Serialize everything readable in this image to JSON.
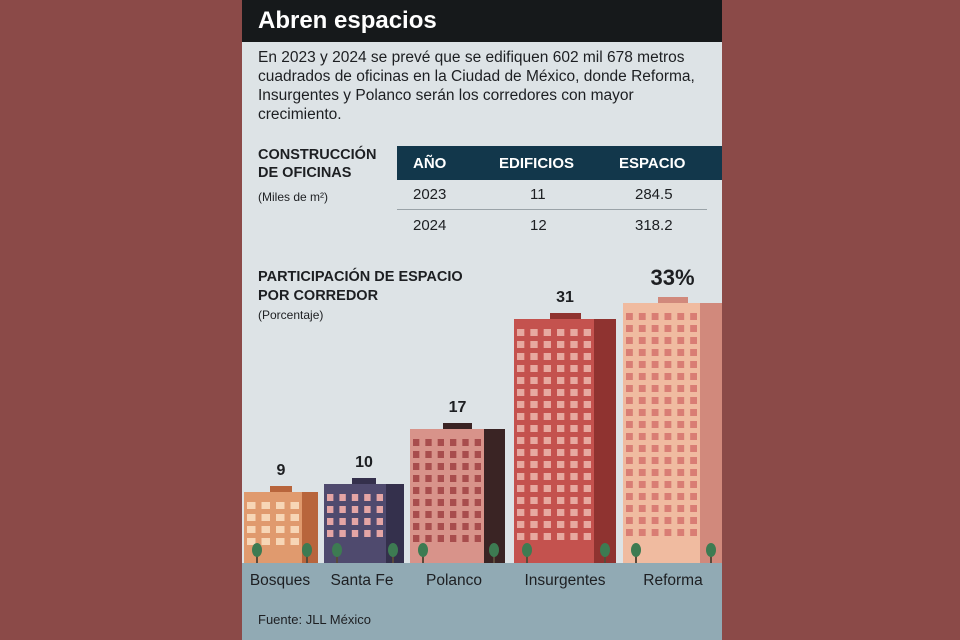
{
  "title": "Abren espacios",
  "intro": "En 2023 y 2024 se prevé que se edifiquen 602 mil 678 metros cuadrados de oficinas en la Ciudad de México, donde Reforma, Insurgentes y Polanco serán los corredores con mayor crecimiento.",
  "table_section": {
    "title_line1": "CONSTRUCCIÓN",
    "title_line2": "DE OFICINAS",
    "unit": "(Miles de m²)"
  },
  "chart_section": {
    "title_line1": "PARTICIPACIÓN DE ESPACIO",
    "title_line2": "POR CORREDOR",
    "unit": "(Porcentaje)"
  },
  "source": "Fuente: JLL México",
  "colors": {
    "bosques": "#e09a6e",
    "santa_fe": "#4f4a6e",
    "polanco": "#d8938a",
    "insurgentes": "#c4524e",
    "reforma": "#f0bba0",
    "ground": "#91aab4",
    "header": "#12374b"
  },
  "chart_data": [
    {
      "type": "table",
      "columns": [
        "AÑO",
        "EDIFICIOS",
        "ESPACIO"
      ],
      "rows": [
        [
          "2023",
          "11",
          "284.5"
        ],
        [
          "2024",
          "12",
          "318.2"
        ]
      ]
    },
    {
      "type": "bar",
      "categories": [
        "Bosques",
        "Santa Fe",
        "Polanco",
        "Insurgentes",
        "Reforma"
      ],
      "values": [
        9,
        10,
        17,
        31,
        33
      ],
      "data_labels": [
        "9",
        "10",
        "17",
        "31",
        "33%"
      ],
      "ylim": [
        0,
        33
      ]
    }
  ]
}
